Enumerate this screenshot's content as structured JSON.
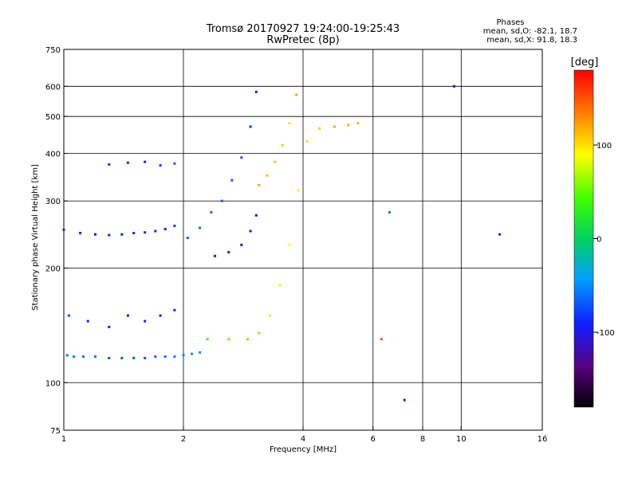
{
  "chart_data": {
    "type": "scatter",
    "title": "Tromsø 20170927 19:24:00-19:25:43",
    "subtitle": "RwPretec (8p)",
    "xlabel": "Frequency [MHz]",
    "ylabel": "Stationary phase Virtual Height [km]",
    "x_scale": "log",
    "y_scale": "log",
    "xlim": [
      1,
      16
    ],
    "ylim": [
      75,
      750
    ],
    "x_ticks": [
      1,
      2,
      4,
      6,
      8,
      10,
      16
    ],
    "y_ticks": [
      75,
      100,
      200,
      300,
      400,
      500,
      600,
      750
    ],
    "x_gridlines": [
      2,
      4,
      6,
      8,
      10
    ],
    "y_gridlines": [
      100,
      200,
      300,
      400,
      500,
      600
    ],
    "grid": true,
    "stats": {
      "heading": "Phases",
      "line_o": "mean, sd,O: -82.1, 18.7",
      "line_x": "mean, sd,X:  91.8, 18.3"
    },
    "colorbar": {
      "label": "[deg]",
      "ticks": [
        100,
        0,
        -100
      ],
      "range": [
        -180,
        180
      ],
      "colormap": "rainbow"
    },
    "series": [
      {
        "x": [
          1.02,
          1.06,
          1.12,
          1.2,
          1.3,
          1.4,
          1.5,
          1.6,
          1.7,
          1.8,
          1.9,
          2.0,
          2.1,
          2.2
        ],
        "y": [
          118,
          117,
          117,
          117,
          116,
          116,
          116,
          116,
          117,
          117,
          117,
          118,
          119,
          120
        ],
        "phase": [
          -60,
          -60,
          -65,
          -65,
          -70,
          -70,
          -70,
          -75,
          -70,
          -65,
          -60,
          -55,
          -50,
          -50
        ]
      },
      {
        "x": [
          1.03,
          1.15,
          1.3,
          1.45,
          1.6,
          1.75,
          1.9
        ],
        "y": [
          150,
          145,
          140,
          150,
          145,
          150,
          155
        ],
        "phase": [
          -75,
          -100,
          -95,
          -110,
          -100,
          -95,
          -90
        ]
      },
      {
        "x": [
          1.0,
          1.1,
          1.2,
          1.3,
          1.4,
          1.5,
          1.6,
          1.7,
          1.8,
          1.9
        ],
        "y": [
          252,
          247,
          245,
          244,
          245,
          247,
          248,
          250,
          253,
          258
        ],
        "phase": [
          -95,
          -100,
          -100,
          -100,
          -95,
          -100,
          -95,
          -90,
          -90,
          -80
        ]
      },
      {
        "x": [
          1.3,
          1.45,
          1.6,
          1.75,
          1.9
        ],
        "y": [
          374,
          378,
          380,
          372,
          376
        ],
        "phase": [
          -80,
          -90,
          -100,
          -80,
          -70
        ]
      },
      {
        "x": [
          2.05,
          2.2,
          2.35,
          2.5,
          2.65,
          2.8,
          2.95,
          3.05
        ],
        "y": [
          240,
          255,
          280,
          300,
          340,
          390,
          470,
          580
        ],
        "phase": [
          -70,
          -65,
          -65,
          -70,
          -70,
          -75,
          -85,
          -100
        ]
      },
      {
        "x": [
          2.4,
          2.6,
          2.8,
          2.95,
          3.05
        ],
        "y": [
          215,
          220,
          230,
          250,
          275
        ],
        "phase": [
          -110,
          -115,
          -110,
          -120,
          -110
        ]
      },
      {
        "x": [
          2.3,
          2.6,
          2.9,
          3.1,
          3.3,
          3.5,
          3.7,
          3.9,
          4.1,
          4.4,
          4.8,
          5.2,
          5.5
        ],
        "y": [
          130,
          130,
          130,
          135,
          150,
          180,
          230,
          320,
          430,
          465,
          470,
          475,
          480
        ],
        "phase": [
          40,
          50,
          55,
          60,
          80,
          85,
          90,
          95,
          100,
          110,
          120,
          120,
          115
        ]
      },
      {
        "x": [
          3.1,
          3.25,
          3.4,
          3.55,
          3.7,
          3.85
        ],
        "y": [
          330,
          350,
          380,
          420,
          480,
          570
        ],
        "phase": [
          120,
          115,
          110,
          105,
          100,
          125
        ]
      },
      {
        "x": [
          6.3,
          6.6,
          7.2,
          9.6,
          12.5
        ],
        "y": [
          130,
          280,
          90,
          600,
          245
        ],
        "phase": [
          150,
          -60,
          -100,
          -120,
          -90
        ]
      }
    ]
  }
}
